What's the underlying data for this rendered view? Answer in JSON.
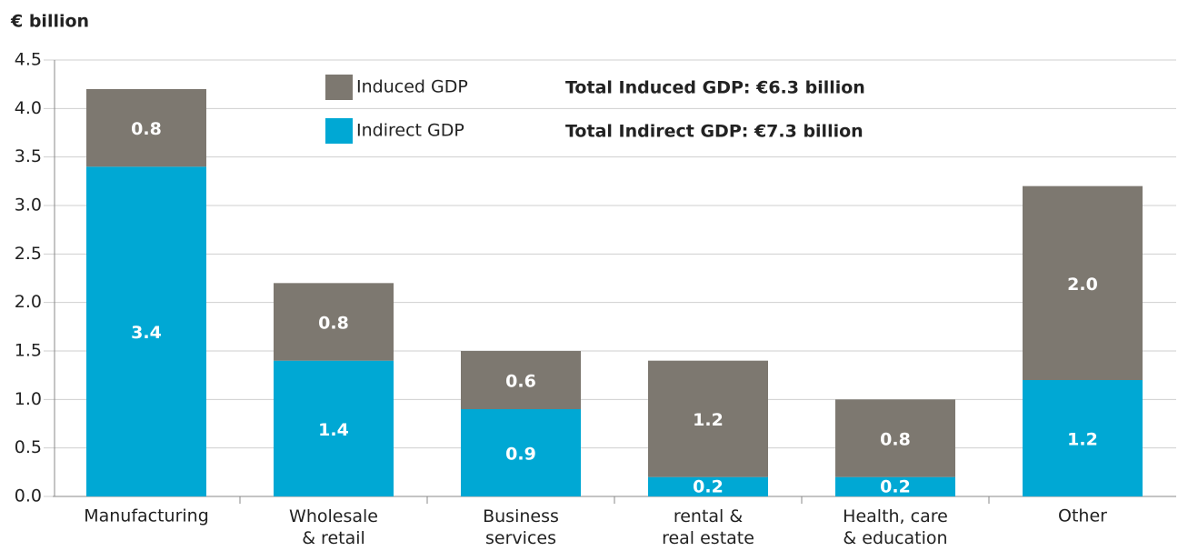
{
  "chart_data": {
    "type": "stacked_bar",
    "ylabel": "€ billion",
    "categories": [
      "Manufacturing",
      "Wholesale\n& retail",
      "Business\nservices",
      "rental &\nreal estate",
      "Health, care\n& education",
      "Other"
    ],
    "series": [
      {
        "name": "Indirect GDP",
        "color": "#00a8d4",
        "values": [
          3.4,
          1.4,
          0.9,
          0.2,
          0.2,
          1.2
        ],
        "value_labels": [
          "3.4",
          "1.4",
          "0.9",
          "0.2",
          "0.2",
          "1.2"
        ]
      },
      {
        "name": "Induced GDP",
        "color": "#7d7870",
        "values": [
          0.8,
          0.8,
          0.6,
          1.2,
          0.8,
          2.0
        ],
        "value_labels": [
          "0.8",
          "0.8",
          "0.6",
          "1.2",
          "0.8",
          "2.0"
        ]
      }
    ],
    "annotations": [
      "Total Induced GDP: €6.3 billion",
      "Total Indirect GDP: €7.3 billion"
    ],
    "ylim": [
      0,
      4.5
    ],
    "yticks": [
      {
        "value": 0,
        "label": "0.0"
      },
      {
        "value": 0.5,
        "label": "0.5"
      },
      {
        "value": 1,
        "label": "1.0"
      },
      {
        "value": 1.5,
        "label": "1.5"
      },
      {
        "value": 2,
        "label": "2.0"
      },
      {
        "value": 2.5,
        "label": "2.5"
      },
      {
        "value": 3,
        "label": "3.0"
      },
      {
        "value": 3.5,
        "label": "3.5"
      },
      {
        "value": 4,
        "label": "4.0"
      },
      {
        "value": 4.5,
        "label": "4.5"
      }
    ],
    "grid": true
  }
}
